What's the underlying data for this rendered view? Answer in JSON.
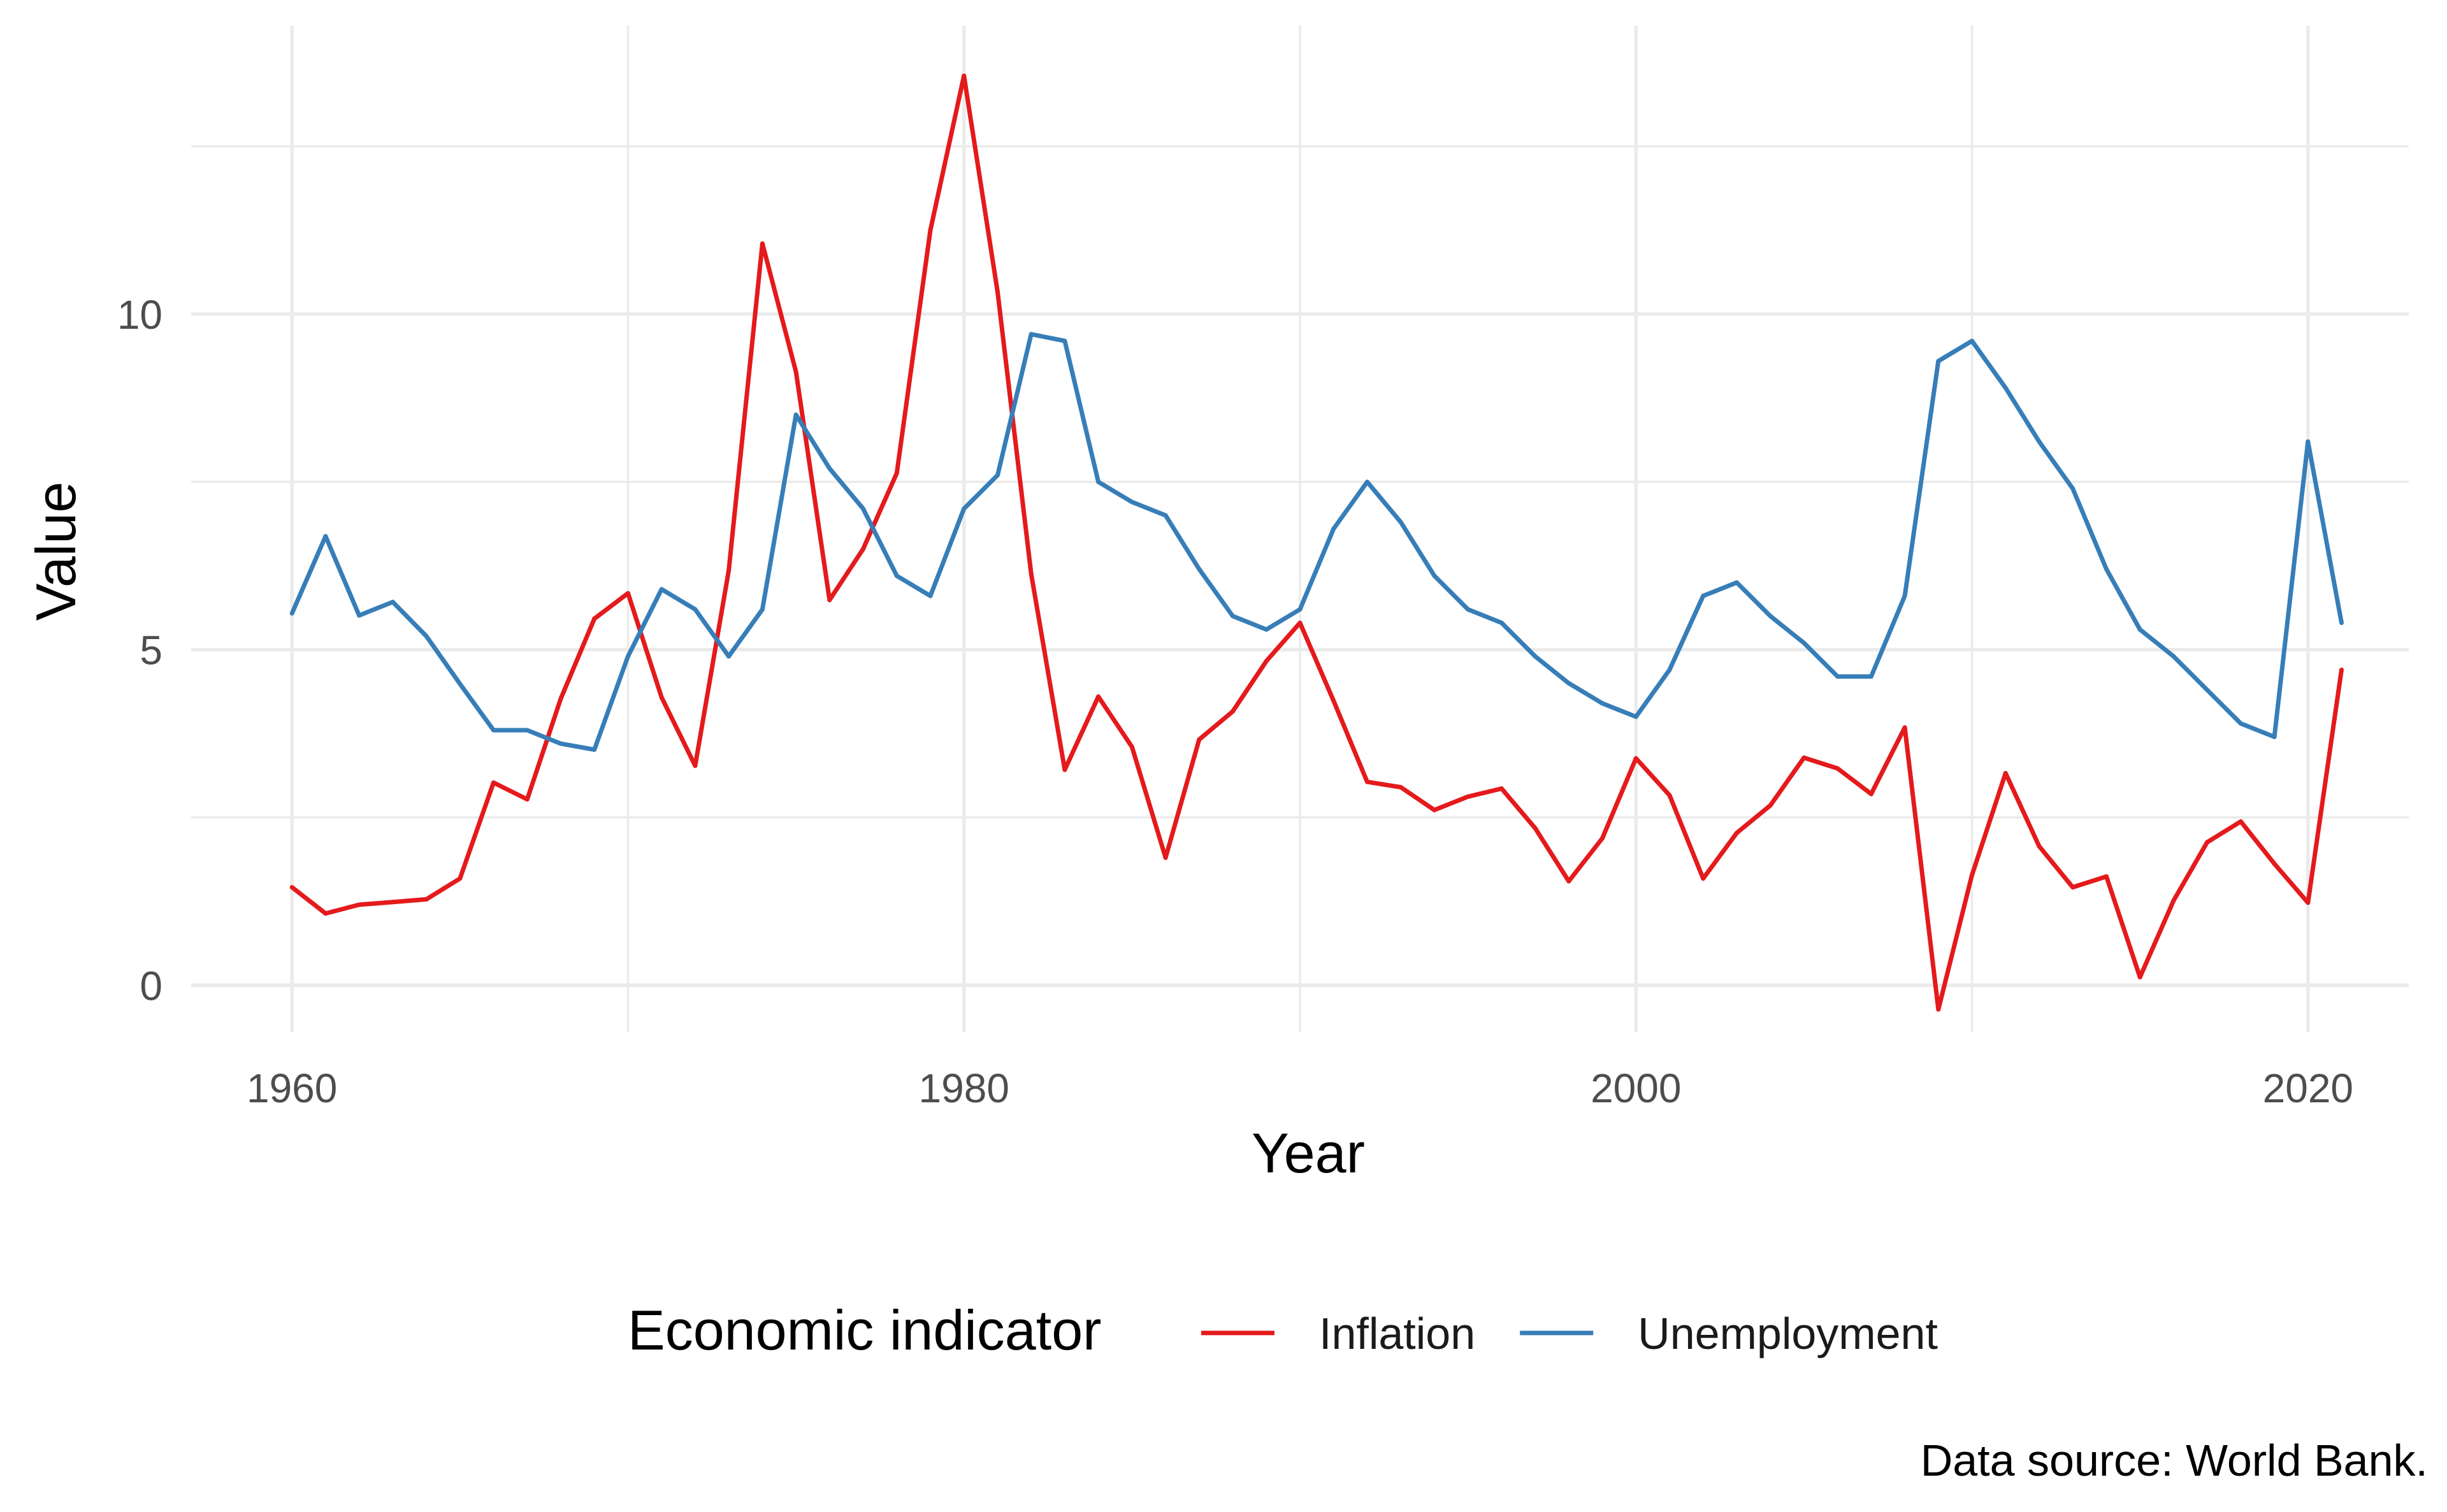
{
  "chart_data": {
    "type": "line",
    "xlabel": "Year",
    "ylabel": "Value",
    "xlim": [
      1957,
      2023
    ],
    "ylim": [
      -0.7,
      14.3
    ],
    "x_ticks": [
      1960,
      1980,
      2000,
      2020
    ],
    "x_tick_labels": [
      "1960",
      "1980",
      "2000",
      "2020"
    ],
    "x_minor_ticks": [
      1970,
      1990,
      2010
    ],
    "y_ticks": [
      0,
      5,
      10
    ],
    "y_tick_labels": [
      "0",
      "5",
      "10"
    ],
    "y_minor_ticks": [
      2.5,
      7.5,
      12.5
    ],
    "grid": true,
    "legend": {
      "title": "Economic indicator",
      "position": "bottom"
    },
    "caption": "Data source: World Bank.",
    "x": [
      1960,
      1961,
      1962,
      1963,
      1964,
      1965,
      1966,
      1967,
      1968,
      1969,
      1970,
      1971,
      1972,
      1973,
      1974,
      1975,
      1976,
      1977,
      1978,
      1979,
      1980,
      1981,
      1982,
      1983,
      1984,
      1985,
      1986,
      1987,
      1988,
      1989,
      1990,
      1991,
      1992,
      1993,
      1994,
      1995,
      1996,
      1997,
      1998,
      1999,
      2000,
      2001,
      2002,
      2003,
      2004,
      2005,
      2006,
      2007,
      2008,
      2009,
      2010,
      2011,
      2012,
      2013,
      2014,
      2015,
      2016,
      2017,
      2018,
      2019,
      2020,
      2021
    ],
    "series": [
      {
        "name": "Inflation",
        "color": "#e41a1c",
        "values": [
          1.46,
          1.07,
          1.2,
          1.24,
          1.28,
          1.59,
          3.02,
          2.77,
          4.27,
          5.46,
          5.84,
          4.29,
          3.27,
          6.18,
          11.05,
          9.14,
          5.74,
          6.5,
          7.63,
          11.25,
          13.55,
          10.33,
          6.13,
          3.21,
          4.3,
          3.55,
          1.9,
          3.66,
          4.08,
          4.83,
          5.4,
          4.24,
          3.03,
          2.95,
          2.61,
          2.81,
          2.93,
          2.34,
          1.55,
          2.19,
          3.38,
          2.83,
          1.59,
          2.27,
          2.68,
          3.39,
          3.23,
          2.85,
          3.84,
          -0.36,
          1.64,
          3.16,
          2.07,
          1.46,
          1.62,
          0.12,
          1.26,
          2.13,
          2.44,
          1.81,
          1.23,
          4.7
        ]
      },
      {
        "name": "Unemployment",
        "color": "#377eb8",
        "values": [
          5.54,
          6.69,
          5.51,
          5.71,
          5.2,
          4.49,
          3.8,
          3.8,
          3.6,
          3.51,
          4.9,
          5.9,
          5.6,
          4.9,
          5.6,
          8.5,
          7.7,
          7.1,
          6.1,
          5.8,
          7.1,
          7.6,
          9.7,
          9.6,
          7.5,
          7.2,
          7.0,
          6.2,
          5.5,
          5.3,
          5.6,
          6.8,
          7.5,
          6.9,
          6.1,
          5.6,
          5.4,
          4.9,
          4.5,
          4.2,
          4.0,
          4.7,
          5.8,
          6.0,
          5.5,
          5.1,
          4.6,
          4.6,
          5.8,
          9.3,
          9.6,
          8.9,
          8.1,
          7.4,
          6.2,
          5.3,
          4.9,
          4.4,
          3.9,
          3.7,
          8.1,
          5.4
        ]
      }
    ]
  }
}
